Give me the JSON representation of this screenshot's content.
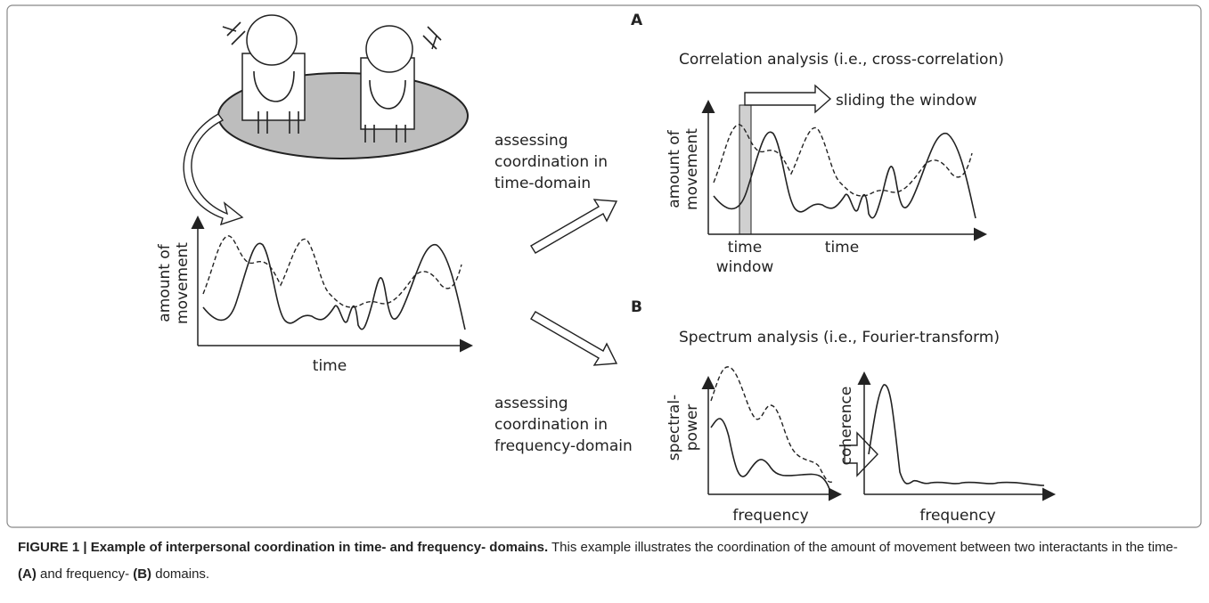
{
  "left_plot": {
    "y_label": [
      "amount of",
      "movement"
    ],
    "x_label": "time"
  },
  "arrows": {
    "time_domain": [
      "assessing",
      "coordination in",
      "time-domain"
    ],
    "frequency_domain": [
      "assessing",
      "coordination in",
      "frequency-domain"
    ]
  },
  "panel_a": {
    "label": "A",
    "title": "Correlation analysis (i.e., cross-correlation)",
    "slide_label": "sliding the window",
    "y_label": [
      "amount of",
      "movement"
    ],
    "window_label": [
      "time",
      "window"
    ],
    "x_label": "time"
  },
  "panel_b": {
    "label": "B",
    "title": "Spectrum analysis (i.e., Fourier-transform)",
    "power_y_label": [
      "spectral-",
      "power"
    ],
    "power_x_label": "frequency",
    "coherence_y_label": "coherence",
    "coherence_x_label": "frequency"
  },
  "caption": {
    "heading": "FIGURE 1 | Example of interpersonal coordination in time- and frequency- domains.",
    "text": " This example illustrates the coordination of the amount of movement between two interactants in the time- ",
    "label_a": "(A)",
    "middle": " and frequency- ",
    "label_b": "(B)",
    "end": " domains."
  }
}
